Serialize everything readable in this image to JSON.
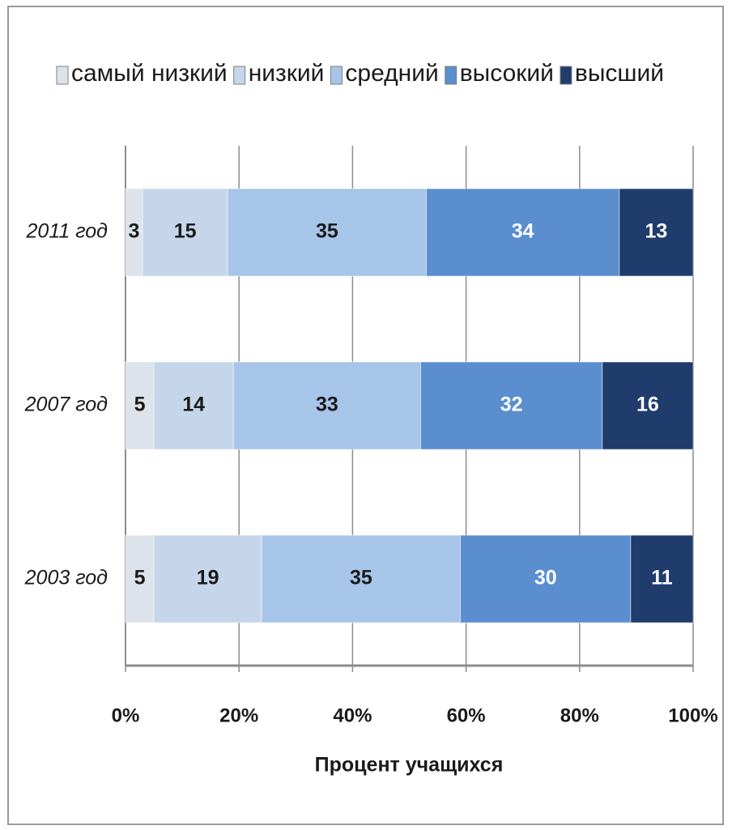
{
  "chart_data": {
    "type": "stacked_barh",
    "categories": [
      "2011 год",
      "2007 год",
      "2003 год"
    ],
    "series": [
      {
        "name": "самый низкий",
        "color": "#dde3ea",
        "values": [
          3,
          5,
          5
        ]
      },
      {
        "name": "низкий",
        "color": "#c6d6ea",
        "values": [
          15,
          14,
          19
        ]
      },
      {
        "name": "средний",
        "color": "#a7c5e9",
        "values": [
          35,
          33,
          35
        ]
      },
      {
        "name": "высокий",
        "color": "#5a8ecf",
        "values": [
          34,
          32,
          30
        ]
      },
      {
        "name": "высший",
        "color": "#1f3c6c",
        "values": [
          13,
          16,
          11
        ]
      }
    ],
    "xlabel": "Процент учащихся",
    "xlim": [
      0,
      100
    ],
    "xticks": [
      {
        "value": 0,
        "label": "0%"
      },
      {
        "value": 20,
        "label": "20%"
      },
      {
        "value": 40,
        "label": "40%"
      },
      {
        "value": 60,
        "label": "60%"
      },
      {
        "value": 80,
        "label": "80%"
      },
      {
        "value": 100,
        "label": "100%"
      }
    ],
    "grid": true,
    "legend": "top"
  }
}
